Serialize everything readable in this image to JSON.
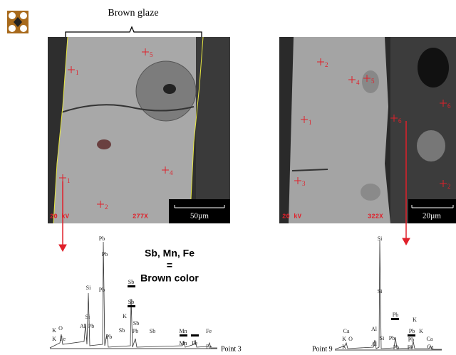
{
  "figure_label": "Brown glaze",
  "left_image": {
    "points": [
      "1",
      "5",
      "1",
      "2",
      "4"
    ],
    "voltage": "20 kV",
    "magnification": "277X",
    "scale": "50µm"
  },
  "right_image": {
    "points": [
      "2",
      "4",
      "5",
      "1",
      "6",
      "6",
      "3",
      "2"
    ],
    "voltage": "20 kV",
    "magnification": "322X",
    "scale": "20µm"
  },
  "note": {
    "elements": "Sb, Mn, Fe",
    "equals": "=",
    "result": "Brown color"
  },
  "left_spectrum": {
    "point": "Point 3",
    "peaks": [
      "Pb",
      "Pb",
      "Pb",
      "Si",
      "Si",
      "Al",
      "Pb",
      "K",
      "O",
      "K",
      "Fe",
      "Sb",
      "Sb",
      "K",
      "Sb",
      "Sb",
      "Pb",
      "Pb",
      "Sb",
      "Mn",
      "Fe",
      "Mn",
      "Fe",
      "Fe"
    ]
  },
  "right_spectrum": {
    "point": "Point 9",
    "peaks": [
      "Si",
      "Si",
      "Pb",
      "K",
      "Pb",
      "K",
      "Ca",
      "Al",
      "K",
      "O",
      "Si",
      "Pb",
      "Pb",
      "Ca",
      "K",
      "Al",
      "Pb",
      "Pb",
      "Ca"
    ]
  }
}
